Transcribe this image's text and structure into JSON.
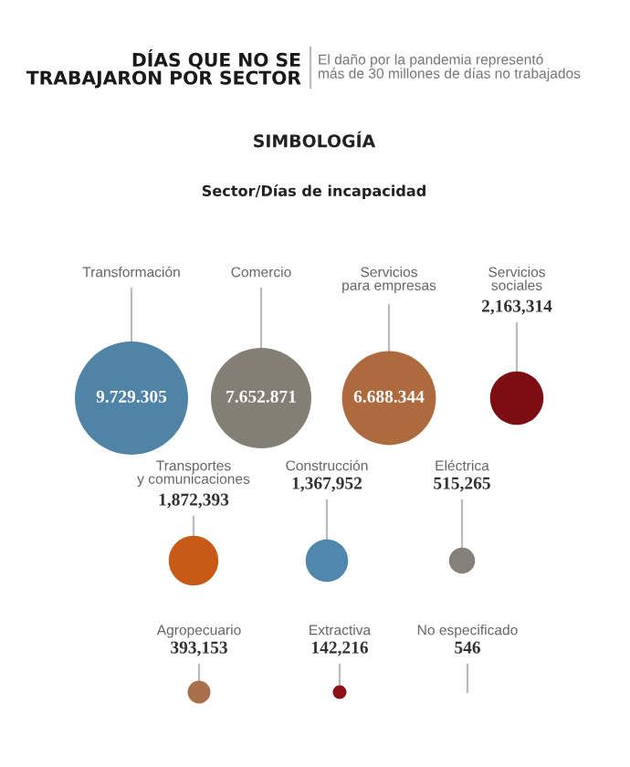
{
  "chart_data": {
    "type": "other",
    "title": "DÍAS QUE NO SE\nTRABAJARON POR SECTOR",
    "subtitle": "El daño por la pandemia representó\nmás de 30 millones de días no trabajados",
    "annotations": [
      "SIMBOLOGÍA",
      "Sector/Días de incapacidad"
    ],
    "categories": [
      "Transformación",
      "Comercio",
      "Servicios\npara empresas",
      "Servicios\nsociales",
      "Transportes\ny comunicaciones",
      "Construcción",
      "Eléctrica",
      "Agropecuario",
      "Extractiva",
      "No especificado"
    ],
    "values": [
      9729305,
      7652871,
      6688344,
      2163314,
      1872393,
      1367952,
      515265,
      393153,
      142216,
      546
    ],
    "value_labels": [
      "9.729.305",
      "7.652.871",
      "6.688.344",
      "2,163,314",
      "1,872,393",
      "1,367,952",
      "515,265",
      "393,153",
      "142,216",
      "546"
    ],
    "colors": [
      "#4f84a6",
      "#847f75",
      "#ad6a3e",
      "#7c0d12",
      "#c65a16",
      "#4f87ad",
      "#85817a",
      "#a86f4a",
      "#8c1014",
      "#8a7f7a"
    ]
  }
}
